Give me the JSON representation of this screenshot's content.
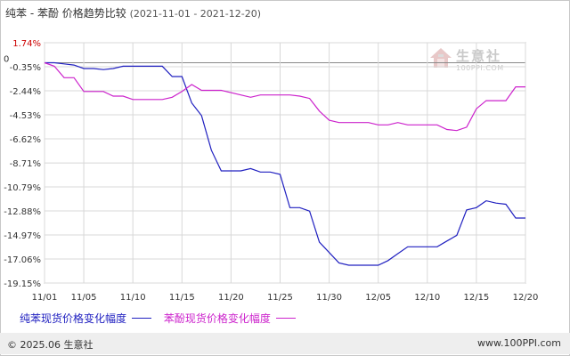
{
  "title": {
    "main": "纯苯 - 苯酚 价格趋势比较",
    "range": "(2021-11-01 - 2021-12-20)"
  },
  "watermark": {
    "name": "生意社",
    "url": "100PPI.COM",
    "icon": "house-logo-icon"
  },
  "footer": {
    "copyright": "© 2025.06 生意社",
    "site": "www.100PPI.com"
  },
  "colors": {
    "series1": "#2020c0",
    "series2": "#cc22cc",
    "grid": "#d8d8d8",
    "axis": "#999999",
    "highlight": "#cc0000"
  },
  "chart_data": {
    "type": "line",
    "x": [
      "11/01",
      "11/02",
      "11/03",
      "11/04",
      "11/05",
      "11/06",
      "11/07",
      "11/08",
      "11/09",
      "11/10",
      "11/11",
      "11/12",
      "11/13",
      "11/14",
      "11/15",
      "11/16",
      "11/17",
      "11/18",
      "11/19",
      "11/20",
      "11/21",
      "11/22",
      "11/23",
      "11/24",
      "11/25",
      "11/26",
      "11/27",
      "11/28",
      "11/29",
      "11/30",
      "12/01",
      "12/02",
      "12/03",
      "12/04",
      "12/05",
      "12/06",
      "12/07",
      "12/08",
      "12/09",
      "12/10",
      "12/11",
      "12/12",
      "12/13",
      "12/14",
      "12/15",
      "12/16",
      "12/17",
      "12/18",
      "12/19",
      "12/20"
    ],
    "x_ticks": [
      "11/01",
      "11/05",
      "11/10",
      "11/15",
      "11/20",
      "11/25",
      "11/30",
      "12/05",
      "12/10",
      "12/15",
      "12/20"
    ],
    "y_ticks": [
      "1.74%",
      "-0.35%",
      "-2.44%",
      "-4.53%",
      "-6.62%",
      "-8.71%",
      "-10.79%",
      "-12.88%",
      "-14.97%",
      "-17.06%",
      "-19.15%"
    ],
    "y_tick_values": [
      1.74,
      -0.35,
      -2.44,
      -4.53,
      -6.62,
      -8.71,
      -10.79,
      -12.88,
      -14.97,
      -17.06,
      -19.15
    ],
    "zero_label": "0",
    "ylim": [
      -19.15,
      1.74
    ],
    "grid": true,
    "legend_position": "bottom-left",
    "series": [
      {
        "name": "纯苯现货价格变化幅度",
        "values": [
          0,
          0,
          -0.1,
          -0.2,
          -0.5,
          -0.5,
          -0.6,
          -0.5,
          -0.3,
          -0.3,
          -0.3,
          -0.3,
          -0.3,
          -1.2,
          -1.2,
          -3.5,
          -4.6,
          -7.6,
          -9.4,
          -9.4,
          -9.4,
          -9.2,
          -9.5,
          -9.5,
          -9.7,
          -12.6,
          -12.6,
          -12.9,
          -15.6,
          -16.5,
          -17.4,
          -17.6,
          -17.6,
          -17.6,
          -17.6,
          -17.2,
          -16.6,
          -16.0,
          -16.0,
          -16.0,
          -16.0,
          -15.5,
          -15.0,
          -12.8,
          -12.6,
          -12.0,
          -12.2,
          -12.3,
          -13.5,
          -13.5
        ]
      },
      {
        "name": "苯酚现货价格变化幅度",
        "values": [
          0,
          -0.3,
          -1.3,
          -1.3,
          -2.5,
          -2.5,
          -2.5,
          -2.9,
          -2.9,
          -3.2,
          -3.2,
          -3.2,
          -3.2,
          -3.0,
          -2.5,
          -1.9,
          -2.4,
          -2.4,
          -2.4,
          -2.6,
          -2.8,
          -3.0,
          -2.8,
          -2.8,
          -2.8,
          -2.8,
          -2.9,
          -3.1,
          -4.2,
          -5.0,
          -5.2,
          -5.2,
          -5.2,
          -5.2,
          -5.4,
          -5.4,
          -5.2,
          -5.4,
          -5.4,
          -5.4,
          -5.4,
          -5.8,
          -5.9,
          -5.6,
          -4.0,
          -3.3,
          -3.3,
          -3.3,
          -2.1,
          -2.1
        ]
      }
    ]
  }
}
